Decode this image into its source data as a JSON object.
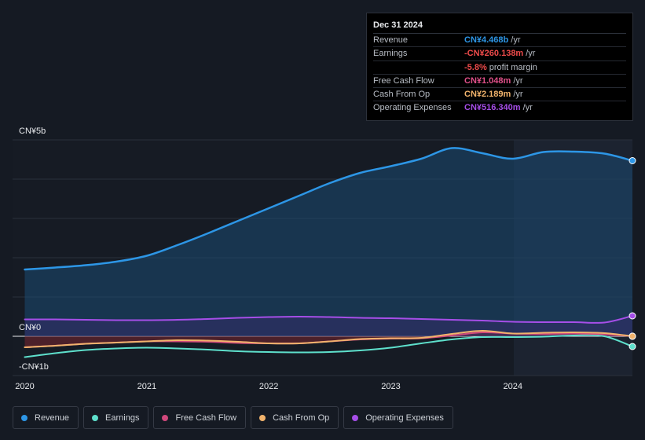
{
  "tooltip": {
    "date": "Dec 31 2024",
    "rows": [
      {
        "key": "Revenue",
        "value": "CN¥4.468b",
        "unit": "/yr",
        "color": "#2d96e6"
      },
      {
        "key": "Earnings",
        "value": "-CN¥260.138m",
        "unit": "/yr",
        "color": "#ef4b4b"
      },
      {
        "key": "",
        "value": "-5.8%",
        "unit": "profit margin",
        "color": "#ef4b4b"
      },
      {
        "key": "Free Cash Flow",
        "value": "CN¥1.048m",
        "unit": "/yr",
        "color": "#e0508a"
      },
      {
        "key": "Cash From Op",
        "value": "CN¥2.189m",
        "unit": "/yr",
        "color": "#f1b36c"
      },
      {
        "key": "Operating Expenses",
        "value": "CN¥516.340m",
        "unit": "/yr",
        "color": "#a64ee8"
      }
    ]
  },
  "legend": [
    {
      "label": "Revenue",
      "color": "#2d96e6"
    },
    {
      "label": "Earnings",
      "color": "#5ee0cc"
    },
    {
      "label": "Free Cash Flow",
      "color": "#d0487c"
    },
    {
      "label": "Cash From Op",
      "color": "#f1b36c"
    },
    {
      "label": "Operating Expenses",
      "color": "#a64ee8"
    }
  ],
  "chart_data": {
    "type": "area",
    "y_axis_labels": [
      "CN¥5b",
      "CN¥0",
      "-CN¥1b"
    ],
    "ylim": [
      -1.0,
      5.0
    ],
    "xlim": [
      2019.9,
      2024.98
    ],
    "x_ticks": [
      2020,
      2021,
      2022,
      2023,
      2024
    ],
    "x_tick_labels": [
      "2020",
      "2021",
      "2022",
      "2023",
      "2024"
    ],
    "forecast_start": 2024.0,
    "unit": "CN¥ billions",
    "series": [
      {
        "name": "Revenue",
        "color": "#2d96e6",
        "fill": true,
        "x": [
          2020.0,
          2020.25,
          2020.5,
          2020.75,
          2021.0,
          2021.25,
          2021.5,
          2021.75,
          2022.0,
          2022.25,
          2022.5,
          2022.75,
          2023.0,
          2023.25,
          2023.5,
          2023.75,
          2024.0,
          2024.25,
          2024.5,
          2024.75,
          2024.98
        ],
        "y": [
          1.7,
          1.75,
          1.81,
          1.9,
          2.05,
          2.32,
          2.62,
          2.94,
          3.26,
          3.58,
          3.9,
          4.16,
          4.33,
          4.52,
          4.79,
          4.66,
          4.52,
          4.69,
          4.7,
          4.65,
          4.47
        ]
      },
      {
        "name": "Earnings",
        "color": "#5ee0cc",
        "fill": false,
        "x": [
          2020.0,
          2020.25,
          2020.5,
          2020.75,
          2021.0,
          2021.25,
          2021.5,
          2021.75,
          2022.0,
          2022.25,
          2022.5,
          2022.75,
          2023.0,
          2023.25,
          2023.5,
          2023.75,
          2024.0,
          2024.25,
          2024.5,
          2024.75,
          2024.98
        ],
        "y": [
          -0.53,
          -0.43,
          -0.35,
          -0.31,
          -0.29,
          -0.31,
          -0.34,
          -0.38,
          -0.4,
          -0.41,
          -0.4,
          -0.36,
          -0.29,
          -0.18,
          -0.08,
          -0.02,
          -0.02,
          -0.01,
          0.02,
          0.0,
          -0.26
        ]
      },
      {
        "name": "Free Cash Flow",
        "color": "#d0487c",
        "fill": true,
        "x": [
          2020.0,
          2020.25,
          2020.5,
          2020.75,
          2021.0,
          2021.25,
          2021.5,
          2021.75,
          2022.0,
          2022.25,
          2022.5,
          2022.75,
          2023.0,
          2023.25,
          2023.5,
          2023.75,
          2024.0,
          2024.25,
          2024.5,
          2024.75,
          2024.98
        ],
        "y": [
          -0.28,
          -0.24,
          -0.19,
          -0.16,
          -0.13,
          -0.13,
          -0.14,
          -0.17,
          -0.18,
          -0.18,
          -0.13,
          -0.08,
          -0.06,
          -0.05,
          0.02,
          0.1,
          0.07,
          0.06,
          0.07,
          0.05,
          0.001
        ]
      },
      {
        "name": "Cash From Op",
        "color": "#f1b36c",
        "fill": false,
        "x": [
          2020.0,
          2020.25,
          2020.5,
          2020.75,
          2021.0,
          2021.25,
          2021.5,
          2021.75,
          2022.0,
          2022.25,
          2022.5,
          2022.75,
          2023.0,
          2023.25,
          2023.5,
          2023.75,
          2024.0,
          2024.25,
          2024.5,
          2024.75,
          2024.98
        ],
        "y": [
          -0.28,
          -0.24,
          -0.19,
          -0.16,
          -0.13,
          -0.1,
          -0.11,
          -0.14,
          -0.18,
          -0.18,
          -0.13,
          -0.07,
          -0.05,
          -0.04,
          0.06,
          0.14,
          0.07,
          0.09,
          0.1,
          0.08,
          0.002
        ]
      },
      {
        "name": "Operating Expenses",
        "color": "#a64ee8",
        "fill": true,
        "x": [
          2020.0,
          2020.25,
          2020.5,
          2020.75,
          2021.0,
          2021.25,
          2021.5,
          2021.75,
          2022.0,
          2022.25,
          2022.5,
          2022.75,
          2023.0,
          2023.25,
          2023.5,
          2023.75,
          2024.0,
          2024.25,
          2024.5,
          2024.75,
          2024.98
        ],
        "y": [
          0.43,
          0.43,
          0.42,
          0.41,
          0.41,
          0.42,
          0.44,
          0.47,
          0.49,
          0.5,
          0.49,
          0.47,
          0.46,
          0.44,
          0.42,
          0.4,
          0.37,
          0.36,
          0.36,
          0.35,
          0.52
        ]
      }
    ]
  }
}
